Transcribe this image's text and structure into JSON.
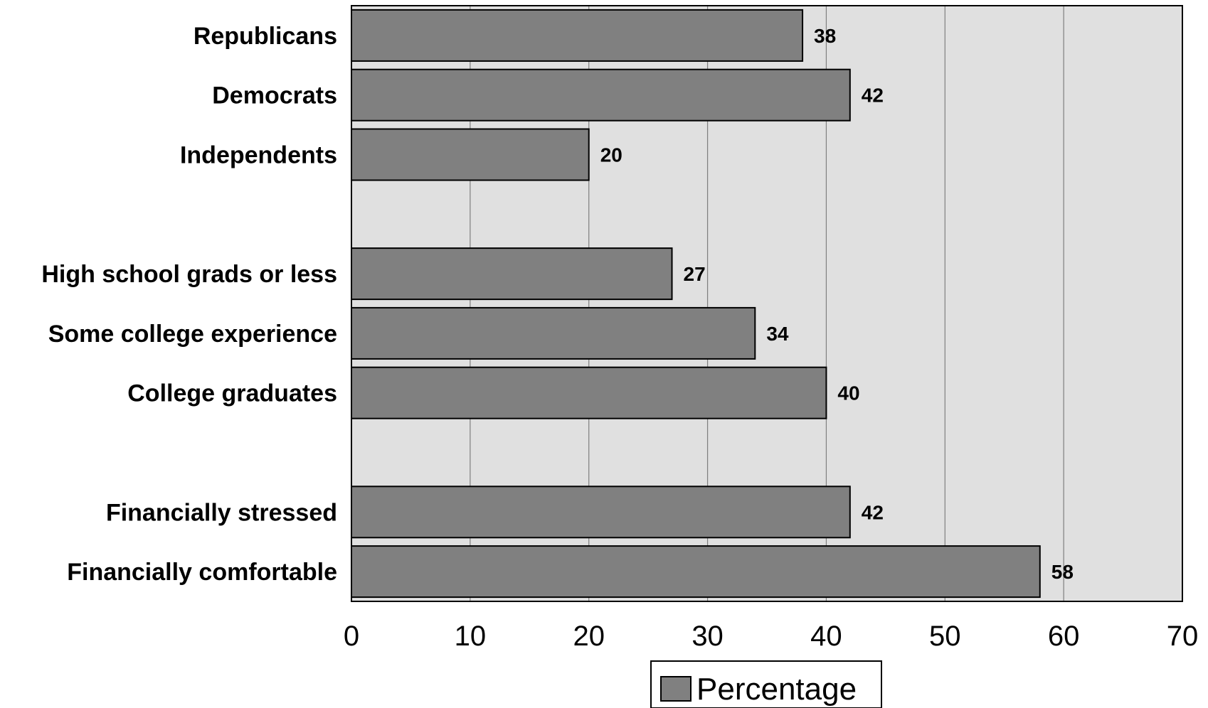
{
  "chart_data": {
    "type": "bar",
    "orientation": "horizontal",
    "categories": [
      "Republicans",
      "Democrats",
      "Independents",
      "",
      "High school grads or less",
      "Some college experience",
      "College graduates",
      "",
      "Financially stressed",
      "Financially comfortable"
    ],
    "series": [
      {
        "name": "Percentage",
        "values": [
          38,
          42,
          20,
          null,
          27,
          34,
          40,
          null,
          42,
          58
        ]
      }
    ],
    "data_labels": [
      "38",
      "42",
      "20",
      "",
      "27",
      "34",
      "40",
      "",
      "42",
      "58"
    ],
    "xlim": [
      0,
      70
    ],
    "xticks": [
      0,
      10,
      20,
      30,
      40,
      50,
      60,
      70
    ],
    "grid": "vertical",
    "legend": {
      "placement": "bottom-center",
      "entries": [
        "Percentage"
      ]
    },
    "colors": {
      "bar_fill": "#808080",
      "bar_stroke": "#000000",
      "plot_background": "#e0e0e0",
      "gridline": "#7f7f7f"
    }
  }
}
